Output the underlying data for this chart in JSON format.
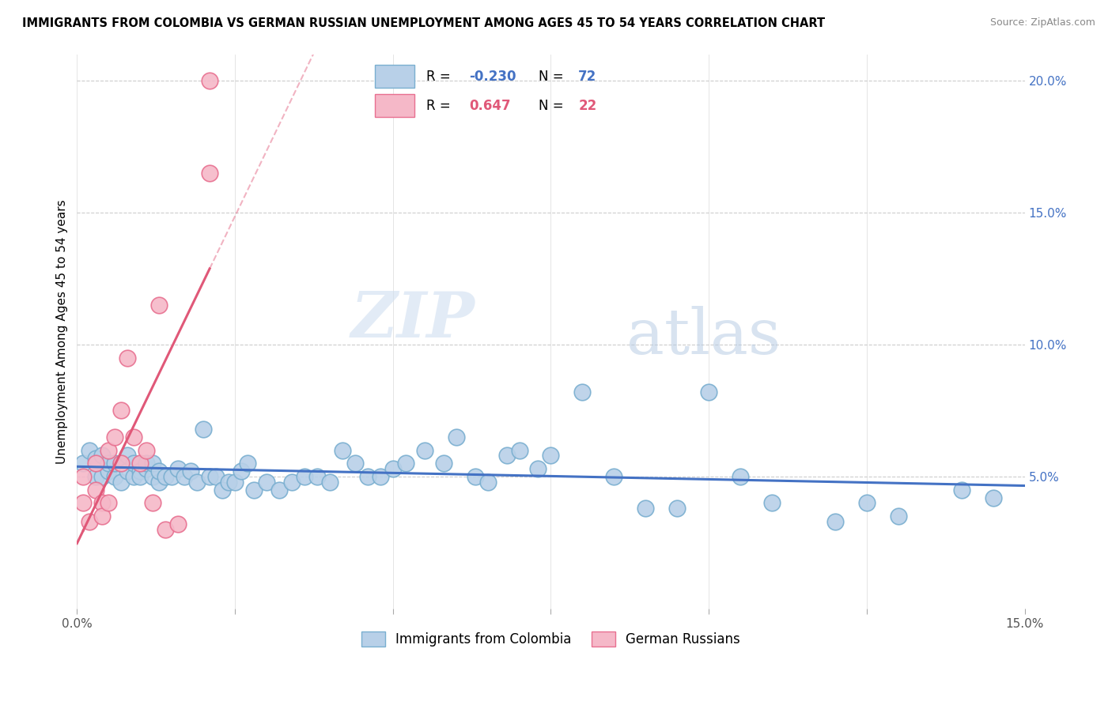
{
  "title": "IMMIGRANTS FROM COLOMBIA VS GERMAN RUSSIAN UNEMPLOYMENT AMONG AGES 45 TO 54 YEARS CORRELATION CHART",
  "source": "Source: ZipAtlas.com",
  "ylabel": "Unemployment Among Ages 45 to 54 years",
  "x_min": 0.0,
  "x_max": 0.15,
  "y_min": 0.0,
  "y_max": 0.21,
  "y_ticks_right": [
    0.05,
    0.1,
    0.15,
    0.2
  ],
  "blue_color": "#b8d0e8",
  "blue_edge_color": "#7aafd0",
  "pink_color": "#f5b8c8",
  "pink_edge_color": "#e87090",
  "blue_line_color": "#4472c4",
  "pink_line_color": "#e05878",
  "r_blue": -0.23,
  "n_blue": 72,
  "r_pink": 0.647,
  "n_pink": 22,
  "legend_label_blue": "Immigrants from Colombia",
  "legend_label_pink": "German Russians",
  "watermark_zip": "ZIP",
  "watermark_atlas": "atlas",
  "blue_scatter_x": [
    0.001,
    0.002,
    0.003,
    0.003,
    0.004,
    0.004,
    0.005,
    0.005,
    0.006,
    0.006,
    0.007,
    0.007,
    0.008,
    0.008,
    0.009,
    0.009,
    0.01,
    0.01,
    0.011,
    0.011,
    0.012,
    0.012,
    0.013,
    0.013,
    0.014,
    0.015,
    0.016,
    0.017,
    0.018,
    0.019,
    0.02,
    0.021,
    0.022,
    0.023,
    0.024,
    0.025,
    0.026,
    0.027,
    0.028,
    0.03,
    0.032,
    0.034,
    0.036,
    0.038,
    0.04,
    0.042,
    0.044,
    0.046,
    0.048,
    0.05,
    0.052,
    0.055,
    0.058,
    0.06,
    0.063,
    0.065,
    0.068,
    0.07,
    0.073,
    0.075,
    0.08,
    0.085,
    0.09,
    0.095,
    0.1,
    0.105,
    0.11,
    0.12,
    0.125,
    0.13,
    0.14,
    0.145
  ],
  "blue_scatter_y": [
    0.055,
    0.06,
    0.05,
    0.057,
    0.05,
    0.058,
    0.052,
    0.055,
    0.05,
    0.055,
    0.055,
    0.048,
    0.052,
    0.058,
    0.05,
    0.055,
    0.052,
    0.05,
    0.053,
    0.055,
    0.05,
    0.055,
    0.048,
    0.052,
    0.05,
    0.05,
    0.053,
    0.05,
    0.052,
    0.048,
    0.068,
    0.05,
    0.05,
    0.045,
    0.048,
    0.048,
    0.052,
    0.055,
    0.045,
    0.048,
    0.045,
    0.048,
    0.05,
    0.05,
    0.048,
    0.06,
    0.055,
    0.05,
    0.05,
    0.053,
    0.055,
    0.06,
    0.055,
    0.065,
    0.05,
    0.048,
    0.058,
    0.06,
    0.053,
    0.058,
    0.082,
    0.05,
    0.038,
    0.038,
    0.082,
    0.05,
    0.04,
    0.033,
    0.04,
    0.035,
    0.045,
    0.042
  ],
  "pink_scatter_x": [
    0.001,
    0.001,
    0.002,
    0.003,
    0.003,
    0.004,
    0.004,
    0.005,
    0.005,
    0.006,
    0.007,
    0.007,
    0.008,
    0.009,
    0.01,
    0.011,
    0.012,
    0.013,
    0.014,
    0.016,
    0.021,
    0.021
  ],
  "pink_scatter_y": [
    0.05,
    0.04,
    0.033,
    0.045,
    0.055,
    0.04,
    0.035,
    0.06,
    0.04,
    0.065,
    0.055,
    0.075,
    0.095,
    0.065,
    0.055,
    0.06,
    0.04,
    0.115,
    0.03,
    0.032,
    0.2,
    0.165
  ]
}
